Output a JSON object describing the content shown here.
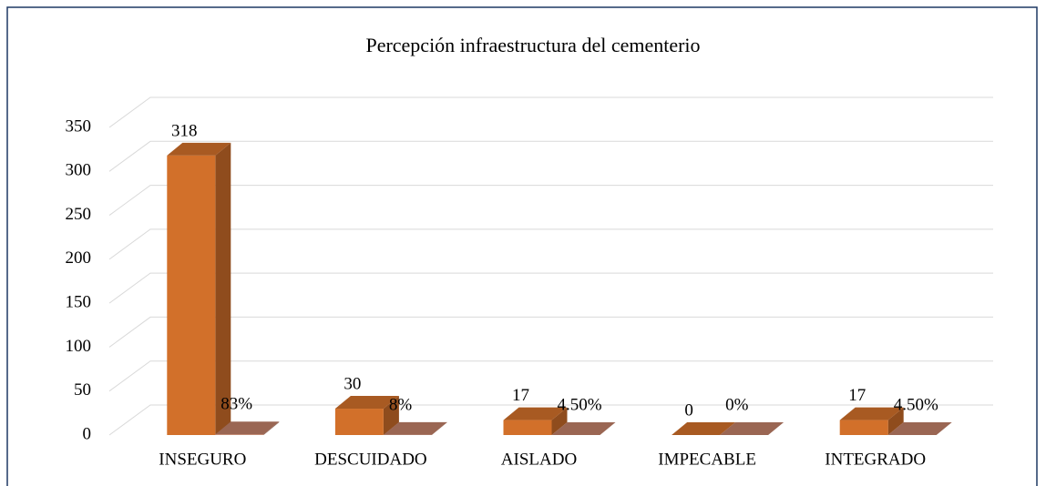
{
  "chart_data": {
    "type": "bar3d",
    "title": "Percepción infraestructura del cementerio",
    "categories": [
      "INSEGURO",
      "DESCUIDADO",
      "AISLADO",
      "IMPECABLE",
      "INTEGRADO"
    ],
    "series": [
      {
        "color": "#d2702a",
        "values": [
          318,
          30,
          17,
          0,
          17
        ]
      },
      {
        "color": "#c08068",
        "values": [
          0.83,
          0.08,
          0.045,
          0,
          0.045
        ],
        "value_labels": [
          "83%",
          "8%",
          "4.50%",
          "0%",
          "4.50%"
        ]
      }
    ],
    "ylim": [
      0,
      350
    ],
    "yticks": [
      0,
      50,
      100,
      150,
      200,
      250,
      300,
      350
    ],
    "grid": true
  }
}
